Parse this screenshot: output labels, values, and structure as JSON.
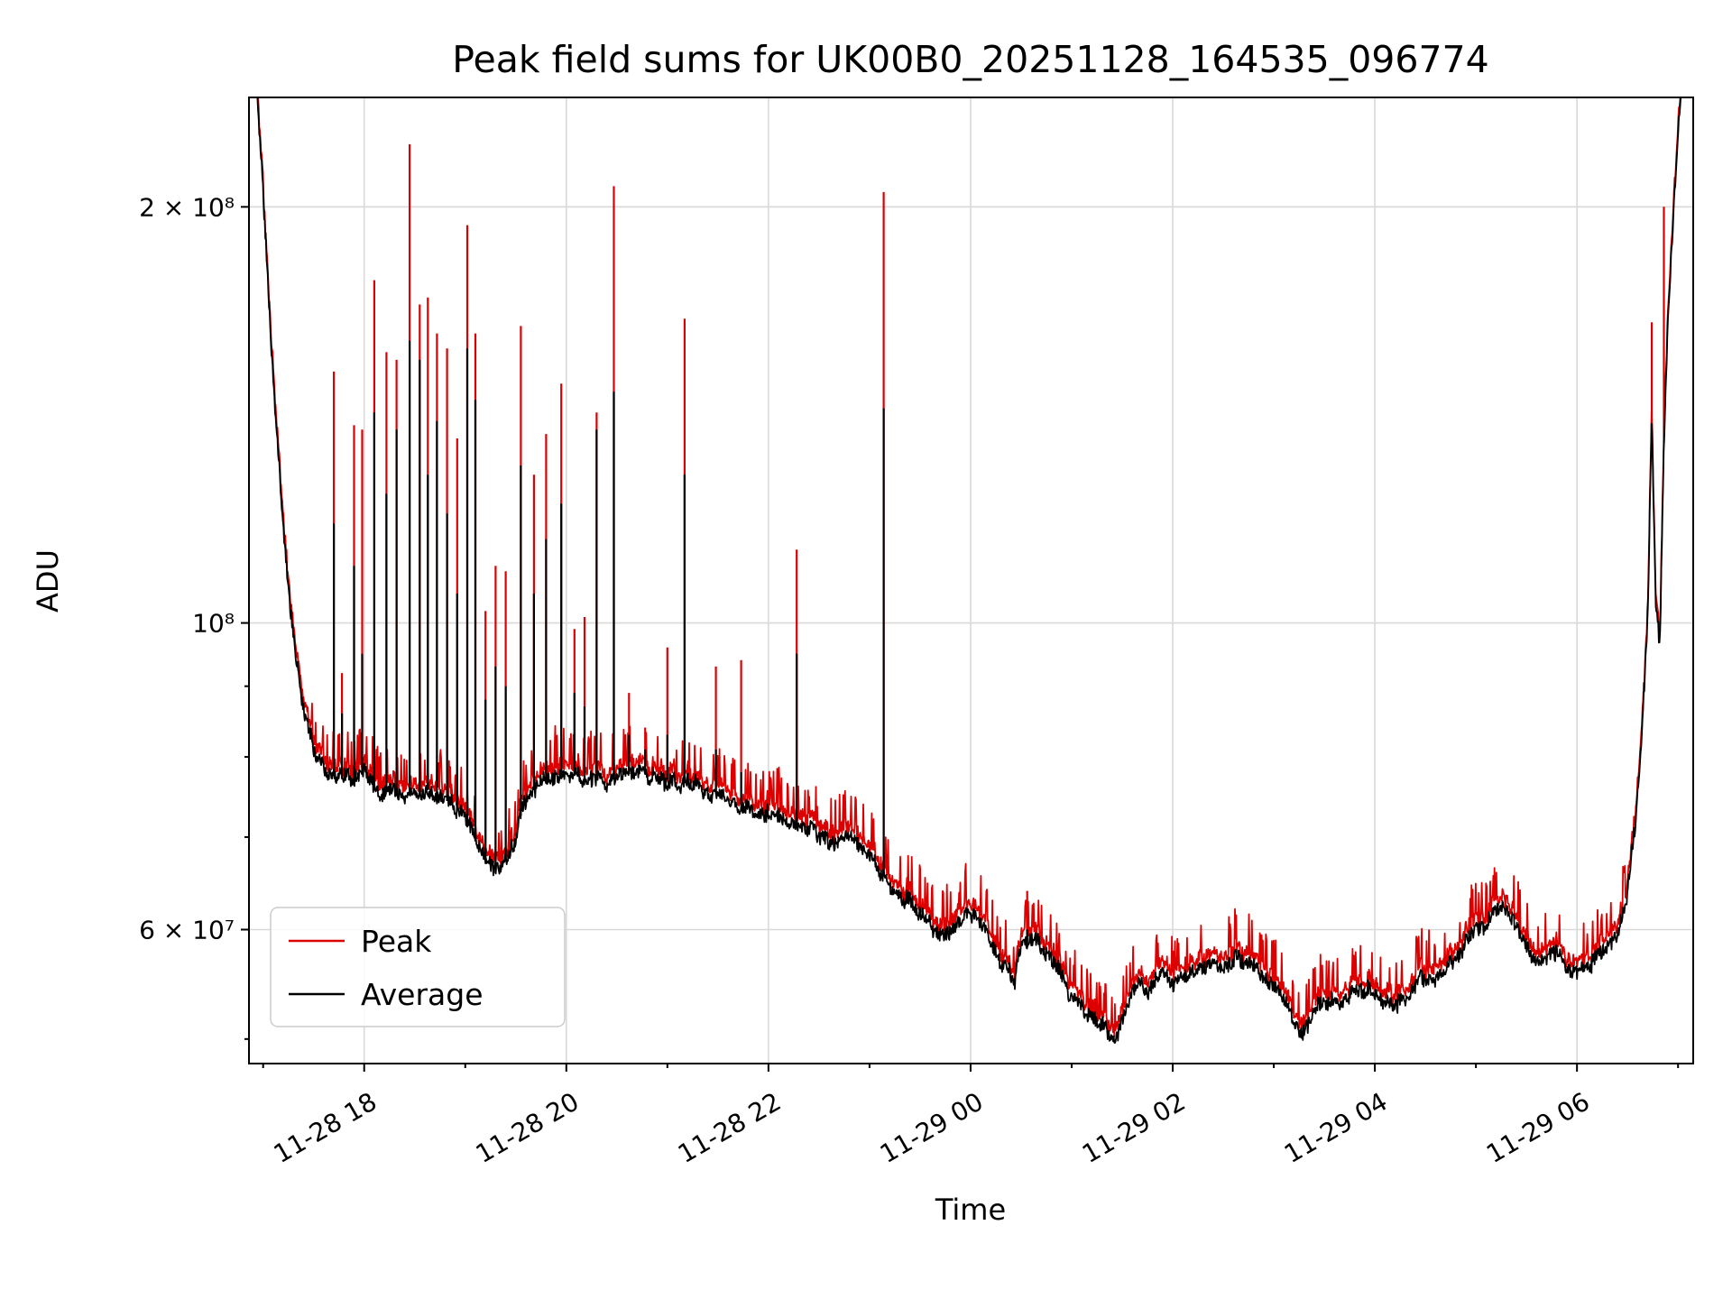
{
  "figure": {
    "background": "#ffffff"
  },
  "chart_data": {
    "type": "line",
    "title": "Peak field sums for UK00B0_20251128_164535_096774",
    "xlabel": "Time",
    "ylabel": "ADU",
    "yscale": "log",
    "grid": true,
    "legend_position": "lower left",
    "ylim": [
      48000000,
      240000000
    ],
    "x_domain_hours": [
      16.86,
      31.15
    ],
    "value_scale": 10000000,
    "series_meta": [
      {
        "name": "Peak",
        "color": "#dd0000"
      },
      {
        "name": "Average",
        "color": "#000000"
      }
    ],
    "xticks": [
      {
        "hour": 18,
        "label": "11-28 18"
      },
      {
        "hour": 20,
        "label": "11-28 20"
      },
      {
        "hour": 22,
        "label": "11-28 22"
      },
      {
        "hour": 24,
        "label": "11-29 00"
      },
      {
        "hour": 26,
        "label": "11-29 02"
      },
      {
        "hour": 28,
        "label": "11-29 04"
      },
      {
        "hour": 30,
        "label": "11-29 06"
      }
    ],
    "xminor_hours": [
      17,
      19,
      21,
      23,
      25,
      27,
      29,
      31
    ],
    "yticks": [
      {
        "value": 60000000,
        "label": "6 × 10⁷"
      },
      {
        "value": 100000000,
        "label": "10⁸"
      },
      {
        "value": 200000000,
        "label": "2 × 10⁸"
      }
    ],
    "yminor": [
      50000000,
      70000000,
      80000000,
      90000000
    ],
    "average_baseline": [
      [
        16.86,
        27.0
      ],
      [
        16.93,
        24.5
      ],
      [
        17.0,
        20.5
      ],
      [
        17.06,
        17.0
      ],
      [
        17.12,
        14.2
      ],
      [
        17.18,
        12.2
      ],
      [
        17.24,
        10.7
      ],
      [
        17.3,
        9.7
      ],
      [
        17.36,
        9.0
      ],
      [
        17.44,
        8.4
      ],
      [
        17.52,
        8.05
      ],
      [
        17.6,
        7.85
      ],
      [
        17.7,
        7.75
      ],
      [
        17.8,
        7.7
      ],
      [
        17.9,
        7.72
      ],
      [
        18.0,
        7.78
      ],
      [
        18.08,
        7.62
      ],
      [
        18.16,
        7.56
      ],
      [
        18.24,
        7.6
      ],
      [
        18.32,
        7.55
      ],
      [
        18.4,
        7.48
      ],
      [
        18.48,
        7.55
      ],
      [
        18.56,
        7.5
      ],
      [
        18.64,
        7.58
      ],
      [
        18.72,
        7.52
      ],
      [
        18.8,
        7.45
      ],
      [
        18.88,
        7.38
      ],
      [
        18.96,
        7.28
      ],
      [
        19.04,
        7.1
      ],
      [
        19.12,
        6.9
      ],
      [
        19.2,
        6.72
      ],
      [
        19.28,
        6.58
      ],
      [
        19.34,
        6.62
      ],
      [
        19.4,
        6.72
      ],
      [
        19.48,
        6.95
      ],
      [
        19.56,
        7.3
      ],
      [
        19.64,
        7.55
      ],
      [
        19.72,
        7.65
      ],
      [
        19.8,
        7.68
      ],
      [
        19.9,
        7.7
      ],
      [
        20.0,
        7.72
      ],
      [
        20.1,
        7.76
      ],
      [
        20.2,
        7.7
      ],
      [
        20.3,
        7.74
      ],
      [
        20.4,
        7.68
      ],
      [
        20.5,
        7.72
      ],
      [
        20.6,
        7.76
      ],
      [
        20.7,
        7.84
      ],
      [
        20.8,
        7.78
      ],
      [
        20.9,
        7.72
      ],
      [
        21.0,
        7.7
      ],
      [
        21.1,
        7.66
      ],
      [
        21.2,
        7.68
      ],
      [
        21.3,
        7.62
      ],
      [
        21.4,
        7.58
      ],
      [
        21.5,
        7.52
      ],
      [
        21.6,
        7.45
      ],
      [
        21.7,
        7.4
      ],
      [
        21.8,
        7.35
      ],
      [
        21.9,
        7.3
      ],
      [
        22.0,
        7.28
      ],
      [
        22.1,
        7.24
      ],
      [
        22.2,
        7.2
      ],
      [
        22.3,
        7.15
      ],
      [
        22.4,
        7.1
      ],
      [
        22.5,
        7.02
      ],
      [
        22.6,
        6.95
      ],
      [
        22.7,
        7.0
      ],
      [
        22.8,
        7.08
      ],
      [
        22.88,
        6.98
      ],
      [
        22.96,
        6.85
      ],
      [
        23.04,
        6.72
      ],
      [
        23.12,
        6.6
      ],
      [
        23.2,
        6.5
      ],
      [
        23.3,
        6.38
      ],
      [
        23.4,
        6.28
      ],
      [
        23.5,
        6.18
      ],
      [
        23.6,
        6.05
      ],
      [
        23.7,
        5.95
      ],
      [
        23.8,
        6.0
      ],
      [
        23.88,
        6.12
      ],
      [
        23.96,
        6.18
      ],
      [
        24.04,
        6.1
      ],
      [
        24.12,
        6.02
      ],
      [
        24.2,
        5.88
      ],
      [
        24.28,
        5.75
      ],
      [
        24.36,
        5.62
      ],
      [
        24.44,
        5.52
      ],
      [
        24.5,
        5.8
      ],
      [
        24.58,
        5.85
      ],
      [
        24.66,
        5.9
      ],
      [
        24.74,
        5.8
      ],
      [
        24.82,
        5.7
      ],
      [
        24.9,
        5.55
      ],
      [
        24.98,
        5.38
      ],
      [
        25.06,
        5.3
      ],
      [
        25.14,
        5.25
      ],
      [
        25.22,
        5.18
      ],
      [
        25.3,
        5.1
      ],
      [
        25.38,
        5.02
      ],
      [
        25.44,
        4.98
      ],
      [
        25.52,
        5.2
      ],
      [
        25.6,
        5.42
      ],
      [
        25.68,
        5.5
      ],
      [
        25.76,
        5.42
      ],
      [
        25.84,
        5.52
      ],
      [
        25.92,
        5.56
      ],
      [
        26.0,
        5.44
      ],
      [
        26.08,
        5.5
      ],
      [
        26.16,
        5.58
      ],
      [
        26.24,
        5.62
      ],
      [
        26.32,
        5.66
      ],
      [
        26.4,
        5.7
      ],
      [
        26.48,
        5.6
      ],
      [
        26.56,
        5.7
      ],
      [
        26.64,
        5.74
      ],
      [
        26.72,
        5.68
      ],
      [
        26.8,
        5.62
      ],
      [
        26.88,
        5.55
      ],
      [
        26.96,
        5.5
      ],
      [
        27.04,
        5.42
      ],
      [
        27.12,
        5.32
      ],
      [
        27.2,
        5.15
      ],
      [
        27.28,
        5.0
      ],
      [
        27.36,
        5.18
      ],
      [
        27.44,
        5.28
      ],
      [
        27.52,
        5.32
      ],
      [
        27.6,
        5.36
      ],
      [
        27.68,
        5.3
      ],
      [
        27.76,
        5.38
      ],
      [
        27.84,
        5.42
      ],
      [
        27.92,
        5.45
      ],
      [
        28.0,
        5.36
      ],
      [
        28.08,
        5.3
      ],
      [
        28.16,
        5.34
      ],
      [
        28.24,
        5.3
      ],
      [
        28.32,
        5.36
      ],
      [
        28.4,
        5.44
      ],
      [
        28.48,
        5.56
      ],
      [
        28.56,
        5.52
      ],
      [
        28.64,
        5.6
      ],
      [
        28.72,
        5.66
      ],
      [
        28.8,
        5.76
      ],
      [
        28.88,
        5.85
      ],
      [
        28.96,
        5.92
      ],
      [
        29.04,
        6.0
      ],
      [
        29.12,
        6.06
      ],
      [
        29.2,
        6.14
      ],
      [
        29.28,
        6.2
      ],
      [
        29.36,
        6.1
      ],
      [
        29.44,
        5.95
      ],
      [
        29.52,
        5.8
      ],
      [
        29.6,
        5.65
      ],
      [
        29.68,
        5.72
      ],
      [
        29.76,
        5.8
      ],
      [
        29.84,
        5.72
      ],
      [
        29.92,
        5.62
      ],
      [
        30.0,
        5.58
      ],
      [
        30.08,
        5.64
      ],
      [
        30.16,
        5.7
      ],
      [
        30.24,
        5.78
      ],
      [
        30.32,
        5.86
      ],
      [
        30.4,
        5.98
      ],
      [
        30.5,
        6.4
      ],
      [
        30.58,
        7.2
      ],
      [
        30.64,
        8.3
      ],
      [
        30.7,
        10.0
      ],
      [
        30.74,
        14.0
      ],
      [
        30.78,
        10.2
      ],
      [
        30.82,
        9.7
      ],
      [
        30.86,
        13.5
      ],
      [
        30.9,
        16.5
      ],
      [
        30.94,
        19.0
      ],
      [
        30.98,
        21.5
      ],
      [
        31.02,
        24.0
      ],
      [
        31.08,
        26.5
      ],
      [
        31.15,
        29.0
      ]
    ],
    "spikes": [
      [
        17.7,
        15.2,
        11.8
      ],
      [
        17.78,
        9.2,
        8.6
      ],
      [
        17.9,
        13.9,
        11.0
      ],
      [
        17.98,
        13.8,
        9.5
      ],
      [
        18.1,
        17.7,
        14.2
      ],
      [
        18.22,
        15.7,
        12.4
      ],
      [
        18.32,
        15.5,
        13.8
      ],
      [
        18.45,
        22.2,
        16.0
      ],
      [
        18.55,
        17.0,
        15.5
      ],
      [
        18.63,
        17.2,
        12.8
      ],
      [
        18.72,
        16.2,
        14.0
      ],
      [
        18.82,
        15.8,
        12.0
      ],
      [
        18.92,
        13.6,
        10.5
      ],
      [
        19.02,
        19.4,
        15.8
      ],
      [
        19.1,
        16.2,
        14.5
      ],
      [
        19.2,
        10.2,
        8.8
      ],
      [
        19.3,
        11.0,
        9.3
      ],
      [
        19.4,
        10.9,
        9.0
      ],
      [
        19.55,
        16.4,
        13.0
      ],
      [
        19.68,
        12.8,
        10.5
      ],
      [
        19.8,
        13.7,
        11.5
      ],
      [
        19.95,
        14.9,
        12.2
      ],
      [
        20.08,
        9.9,
        8.9
      ],
      [
        20.18,
        10.1,
        8.7
      ],
      [
        20.3,
        14.2,
        13.8
      ],
      [
        20.47,
        20.7,
        14.7
      ],
      [
        20.62,
        8.9,
        8.3
      ],
      [
        20.78,
        8.4,
        8.1
      ],
      [
        21.0,
        9.6,
        8.3
      ],
      [
        21.17,
        16.6,
        12.8
      ],
      [
        21.48,
        9.3,
        8.1
      ],
      [
        21.73,
        9.4,
        7.8
      ],
      [
        22.28,
        11.3,
        9.5
      ],
      [
        23.14,
        20.5,
        14.3
      ],
      [
        24.56,
        6.4,
        6.0
      ],
      [
        30.74,
        16.5
      ],
      [
        30.86,
        20.0
      ]
    ],
    "noise": {
      "avg_amp": 0.012,
      "wobble_amp": 0.016,
      "peak_base_ratio": 1.01,
      "peak_jitter": 0.026,
      "peak_tick_prob": 0.12,
      "peak_tick_amp": 0.07
    }
  }
}
